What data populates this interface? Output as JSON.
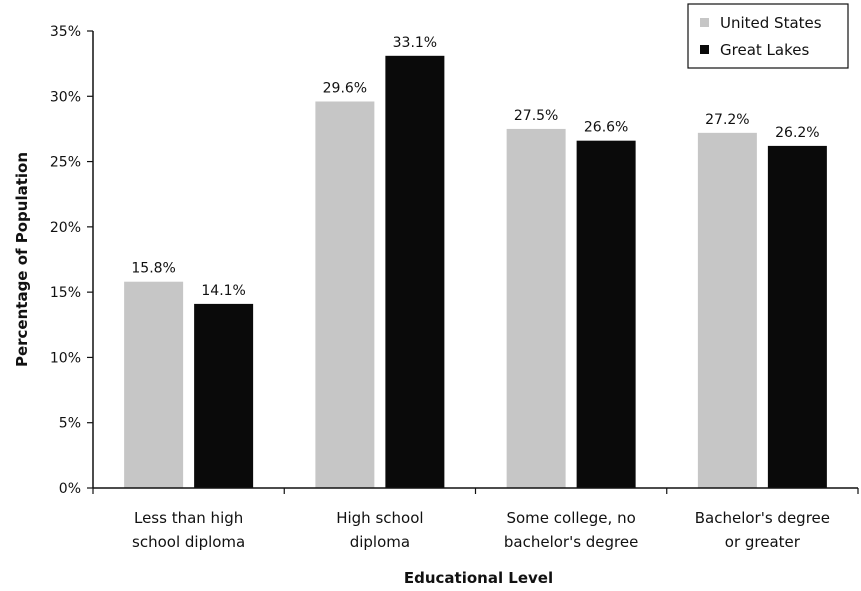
{
  "chart_data": {
    "type": "bar",
    "title": "",
    "xlabel": "Educational Level",
    "ylabel": "Percentage of Population",
    "ylim": [
      0,
      35
    ],
    "ytick_step": 5,
    "ytick_suffix": "%",
    "grid": false,
    "legend_position": "top-right",
    "categories": [
      [
        "Less than high",
        "school diploma"
      ],
      [
        "High school",
        "diploma"
      ],
      [
        "Some college, no",
        "bachelor's degree"
      ],
      [
        "Bachelor's degree",
        "or greater"
      ]
    ],
    "series": [
      {
        "name": "United States",
        "color": "#c6c6c6",
        "values": [
          15.8,
          29.6,
          27.5,
          27.2
        ],
        "labels": [
          "15.8%",
          "29.6%",
          "27.5%",
          "27.2%"
        ]
      },
      {
        "name": "Great Lakes",
        "color": "#0a0a0a",
        "values": [
          14.1,
          33.1,
          26.6,
          26.2
        ],
        "labels": [
          "14.1%",
          "33.1%",
          "26.6%",
          "26.2%"
        ]
      }
    ]
  }
}
